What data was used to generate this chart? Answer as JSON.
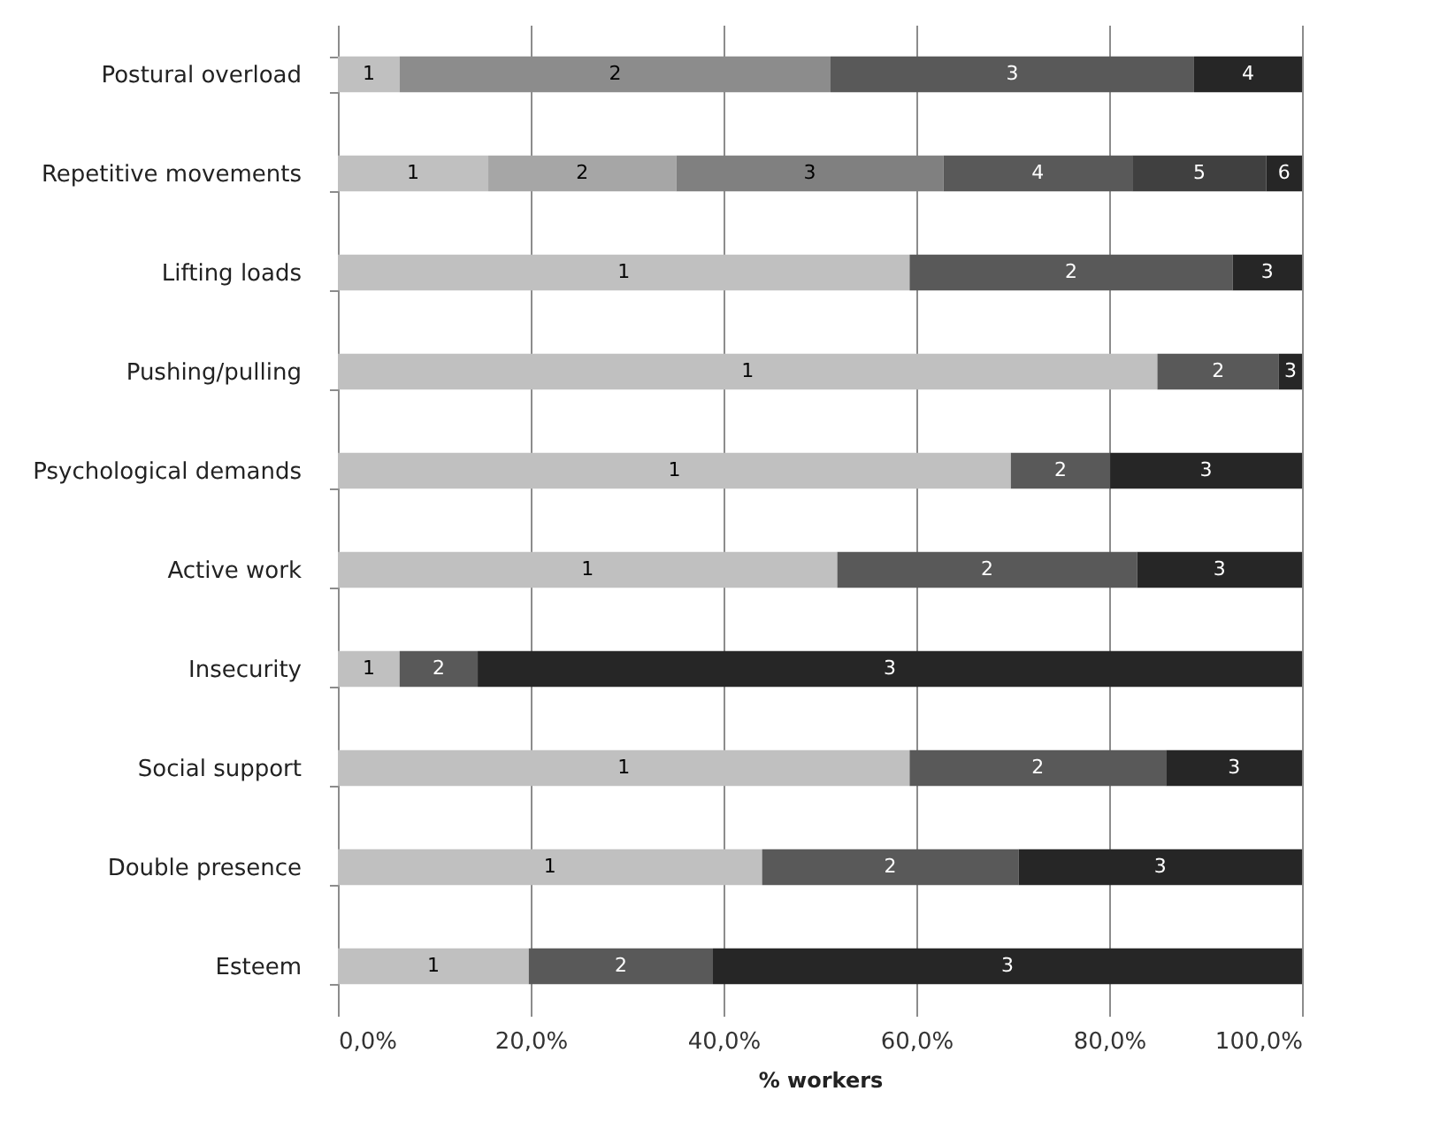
{
  "chart_data": {
    "type": "bar",
    "orientation": "horizontal",
    "stacked": true,
    "xlabel": "% workers",
    "categories": [
      "Postural overload",
      "Repetitive movements",
      "Lifting loads",
      "Pushing/pulling",
      "Psychological demands",
      "Active work",
      "Insecurity",
      "Social support",
      "Double presence",
      "Esteem"
    ],
    "series": [
      {
        "name": "1",
        "colors": [
          "#c0c0c0",
          "#c0c0c0",
          "#c0c0c0",
          "#c0c0c0",
          "#c0c0c0",
          "#c0c0c0",
          "#c0c0c0",
          "#c0c0c0",
          "#c0c0c0",
          "#c0c0c0"
        ],
        "values": [
          6.4,
          15.6,
          59.3,
          85.0,
          69.8,
          51.8,
          6.4,
          59.3,
          44.0,
          19.8
        ]
      },
      {
        "name": "2",
        "colors": [
          "#8c8c8c",
          "#a6a6a6",
          "#595959",
          "#595959",
          "#595959",
          "#595959",
          "#595959",
          "#595959",
          "#595959",
          "#595959"
        ],
        "values": [
          44.7,
          19.5,
          33.5,
          12.6,
          10.3,
          31.1,
          8.1,
          26.6,
          26.6,
          19.1
        ]
      },
      {
        "name": "3",
        "colors": [
          "#595959",
          "#808080",
          "#262626",
          "#262626",
          "#262626",
          "#262626",
          "#262626",
          "#262626",
          "#262626",
          "#262626"
        ],
        "values": [
          37.7,
          27.7,
          7.2,
          2.4,
          19.9,
          17.1,
          85.5,
          14.1,
          29.4,
          61.1
        ]
      },
      {
        "name": "4",
        "colors": [
          "#262626",
          "#595959",
          null,
          null,
          null,
          null,
          null,
          null,
          null,
          null
        ],
        "values": [
          11.2,
          19.6,
          null,
          null,
          null,
          null,
          null,
          null,
          null,
          null
        ]
      },
      {
        "name": "5",
        "colors": [
          null,
          "#404040",
          null,
          null,
          null,
          null,
          null,
          null,
          null,
          null
        ],
        "values": [
          null,
          13.9,
          null,
          null,
          null,
          null,
          null,
          null,
          null,
          null
        ]
      },
      {
        "name": "6",
        "colors": [
          null,
          "#262626",
          null,
          null,
          null,
          null,
          null,
          null,
          null,
          null
        ],
        "values": [
          null,
          3.7,
          null,
          null,
          null,
          null,
          null,
          null,
          null,
          null
        ]
      }
    ],
    "xlim": [
      0,
      100
    ],
    "xticks": [
      {
        "value": 0,
        "label": "0,0%"
      },
      {
        "value": 20,
        "label": "20,0%"
      },
      {
        "value": 40,
        "label": "40,0%"
      },
      {
        "value": 60,
        "label": "60,0%"
      },
      {
        "value": 80,
        "label": "80,0%"
      },
      {
        "value": 100,
        "label": "100,0%"
      }
    ],
    "grid": "x"
  }
}
